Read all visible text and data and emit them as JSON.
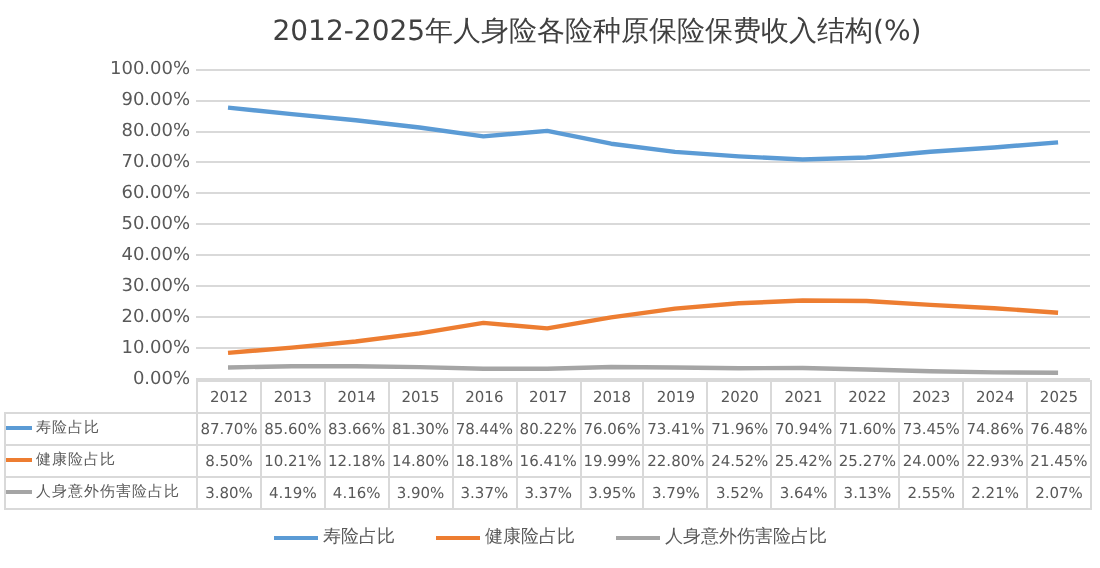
{
  "chart_data": {
    "type": "line",
    "title": "2012-2025年人身险各险种原保险保费收入结构(%)",
    "categories": [
      "2012",
      "2013",
      "2014",
      "2015",
      "2016",
      "2017",
      "2018",
      "2019",
      "2020",
      "2021",
      "2022",
      "2023",
      "2024",
      "2025"
    ],
    "series": [
      {
        "name": "寿险占比",
        "color": "#5b9bd5",
        "values": [
          87.7,
          85.6,
          83.66,
          81.3,
          78.44,
          80.22,
          76.06,
          73.41,
          71.96,
          70.94,
          71.6,
          73.45,
          74.86,
          76.48
        ],
        "value_labels": [
          "87.70%",
          "85.60%",
          "83.66%",
          "81.30%",
          "78.44%",
          "80.22%",
          "76.06%",
          "73.41%",
          "71.96%",
          "70.94%",
          "71.60%",
          "73.45%",
          "74.86%",
          "76.48%"
        ]
      },
      {
        "name": "健康险占比",
        "color": "#ed7d31",
        "values": [
          8.5,
          10.21,
          12.18,
          14.8,
          18.18,
          16.41,
          19.99,
          22.8,
          24.52,
          25.42,
          25.27,
          24.0,
          22.93,
          21.45
        ],
        "value_labels": [
          "8.50%",
          "10.21%",
          "12.18%",
          "14.80%",
          "18.18%",
          "16.41%",
          "19.99%",
          "22.80%",
          "24.52%",
          "25.42%",
          "25.27%",
          "24.00%",
          "22.93%",
          "21.45%"
        ]
      },
      {
        "name": "人身意外伤害险占比",
        "color": "#a5a5a5",
        "values": [
          3.8,
          4.19,
          4.16,
          3.9,
          3.37,
          3.37,
          3.95,
          3.79,
          3.52,
          3.64,
          3.13,
          2.55,
          2.21,
          2.07
        ],
        "value_labels": [
          "3.80%",
          "4.19%",
          "4.16%",
          "3.90%",
          "3.37%",
          "3.37%",
          "3.95%",
          "3.79%",
          "3.52%",
          "3.64%",
          "3.13%",
          "2.55%",
          "2.21%",
          "2.07%"
        ]
      }
    ],
    "ylim": [
      0,
      100
    ],
    "yticks": [
      {
        "value": 0,
        "label": "0.00%"
      },
      {
        "value": 10,
        "label": "10.00%"
      },
      {
        "value": 20,
        "label": "20.00%"
      },
      {
        "value": 30,
        "label": "30.00%"
      },
      {
        "value": 40,
        "label": "40.00%"
      },
      {
        "value": 50,
        "label": "50.00%"
      },
      {
        "value": 60,
        "label": "60.00%"
      },
      {
        "value": 70,
        "label": "70.00%"
      },
      {
        "value": 80,
        "label": "80.00%"
      },
      {
        "value": 90,
        "label": "90.00%"
      },
      {
        "value": 100,
        "label": "100.00%"
      }
    ],
    "grid": "y",
    "legend": "bottom",
    "marker": "none",
    "line_style": "solid"
  }
}
